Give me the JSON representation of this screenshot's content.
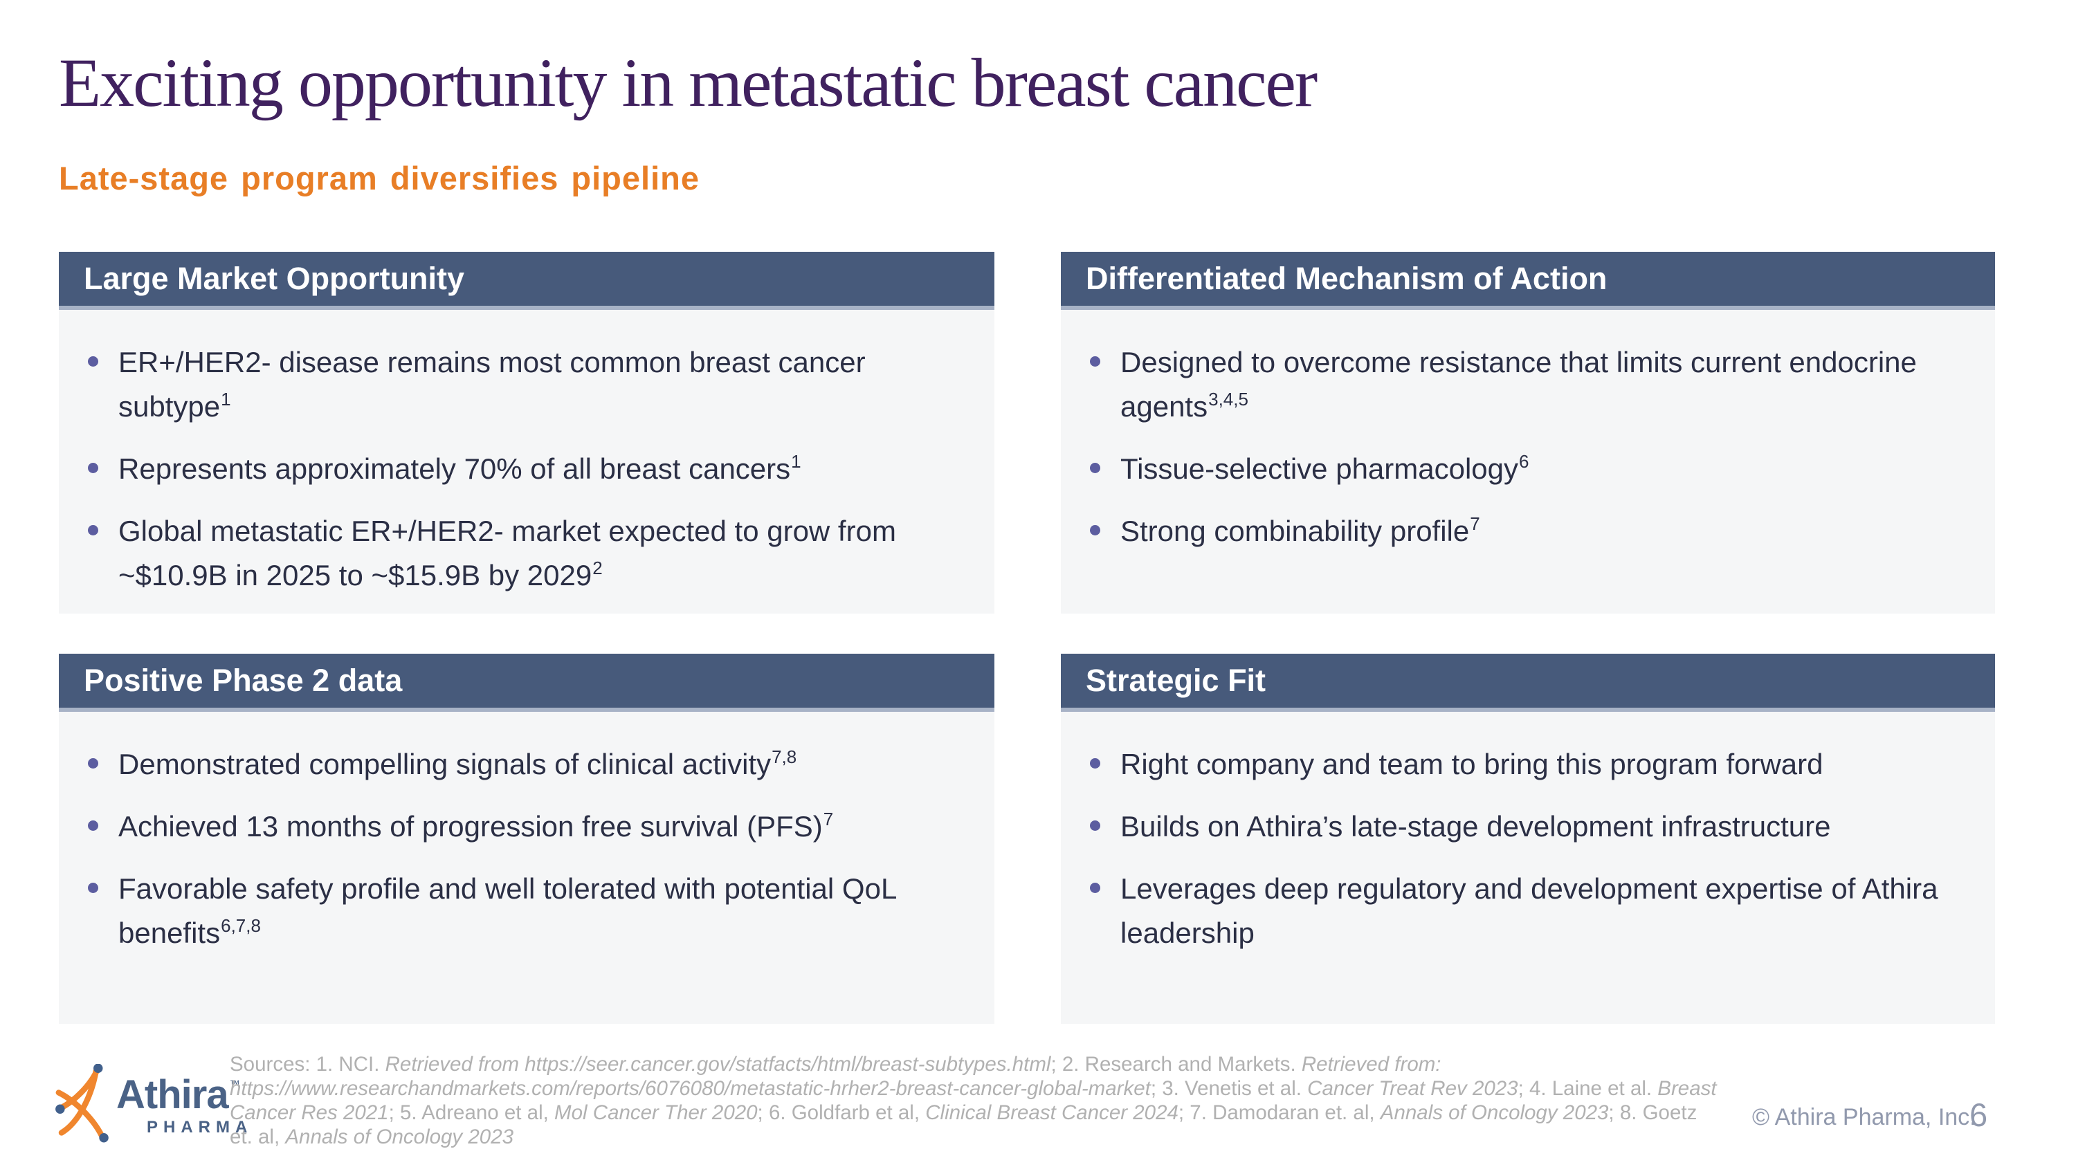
{
  "slide": {
    "title": "Exciting opportunity in metastatic breast cancer",
    "subtitle": "Late-stage program diversifies pipeline",
    "copyright": "© Athira Pharma, Inc.",
    "page_number": "6"
  },
  "colors": {
    "title_purple": "#40215f",
    "subtitle_orange": "#e87e26",
    "box_header_bar": "#475a7b",
    "box_header_underline": "#a7b2c6",
    "box_body_bg": "#f5f6f7",
    "body_text": "#2b2f45",
    "bullet_dot": "#5c5da0",
    "footer_gray": "#b1b1b1",
    "footer_blue_gray": "#9199ad",
    "logo_blue": "#4a6286",
    "logo_orange": "#f0862e"
  },
  "boxes": [
    {
      "title": "Large Market Opportunity",
      "bullets": [
        {
          "text": "ER+/HER2- disease remains most common breast cancer subtype",
          "sup": "1"
        },
        {
          "text": "Represents approximately 70% of all breast cancers",
          "sup": "1"
        },
        {
          "text": "Global metastatic ER+/HER2- market expected to grow from ~$10.9B in 2025 to ~$15.9B by 2029",
          "sup": "2"
        }
      ]
    },
    {
      "title": "Differentiated Mechanism of Action",
      "bullets": [
        {
          "text": "Designed to overcome resistance that limits current endocrine agents",
          "sup": "3,4,5"
        },
        {
          "text": "Tissue-selective pharmacology",
          "sup": "6"
        },
        {
          "text": "Strong combinability profile",
          "sup": "7"
        }
      ]
    },
    {
      "title": "Positive Phase 2 data",
      "bullets": [
        {
          "text": "Demonstrated compelling signals of clinical activity",
          "sup": "7,8"
        },
        {
          "text": "Achieved 13 months of progression free survival (PFS)",
          "sup": "7"
        },
        {
          "text": "Favorable safety profile and well tolerated with potential QoL benefits",
          "sup": "6,7,8"
        }
      ]
    },
    {
      "title": "Strategic Fit",
      "bullets": [
        {
          "text": "Right company and team to bring this program forward",
          "sup": ""
        },
        {
          "text": "Builds on Athira’s late-stage development infrastructure",
          "sup": ""
        },
        {
          "text": "Leverages deep regulatory and development expertise of Athira leadership",
          "sup": ""
        }
      ]
    }
  ],
  "footer": {
    "logo": {
      "name": "Athira",
      "tm": "™",
      "sub": "PHARMA"
    },
    "sources_segments": [
      {
        "text": "Sources: 1. NCI. ",
        "italic": false
      },
      {
        "text": "Retrieved from https://seer.cancer.gov/statfacts/html/breast-subtypes.html",
        "italic": true
      },
      {
        "text": "; 2. Research and Markets. ",
        "italic": false
      },
      {
        "text": "Retrieved from: https://www.researchandmarkets.com/reports/6076080/metastatic-hrher2-breast-cancer-global-market",
        "italic": true
      },
      {
        "text": "; 3. Venetis et al. ",
        "italic": false
      },
      {
        "text": "Cancer Treat Rev 2023",
        "italic": true
      },
      {
        "text": "; 4. Laine et al. ",
        "italic": false
      },
      {
        "text": "Breast Cancer Res 2021",
        "italic": true
      },
      {
        "text": "; 5. Adreano et al, ",
        "italic": false
      },
      {
        "text": "Mol Cancer Ther 2020",
        "italic": true
      },
      {
        "text": "; 6. Goldfarb et al, ",
        "italic": false
      },
      {
        "text": "Clinical Breast Cancer 2024",
        "italic": true
      },
      {
        "text": "; 7. Damodaran et. al, ",
        "italic": false
      },
      {
        "text": "Annals of Oncology 2023",
        "italic": true
      },
      {
        "text": "; 8. Goetz et. al, ",
        "italic": false
      },
      {
        "text": "Annals of Oncology 2023",
        "italic": true
      }
    ]
  }
}
